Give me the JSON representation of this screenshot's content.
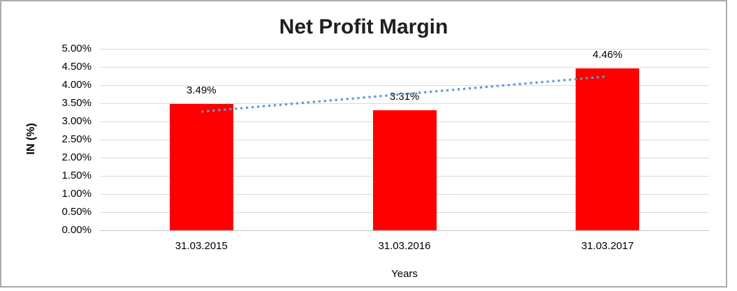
{
  "chart_data": {
    "type": "bar",
    "title": "Net Profit Margin",
    "xlabel": "Years",
    "ylabel": "IN (%)",
    "categories": [
      "31.03.2015",
      "31.03.2016",
      "31.03.2017"
    ],
    "values": [
      3.49,
      3.31,
      4.46
    ],
    "data_labels": [
      "3.49%",
      "3.31%",
      "4.46%"
    ],
    "y_ticks": [
      "5.00%",
      "4.50%",
      "4.00%",
      "3.50%",
      "3.00%",
      "2.50%",
      "2.00%",
      "1.50%",
      "1.00%",
      "0.50%",
      "0.00%"
    ],
    "ylim": [
      0,
      5
    ],
    "y_tick_step": 0.5,
    "grid": true,
    "legend": "none",
    "bar_color": "#ff0000",
    "trendline": {
      "type": "linear",
      "style": "dotted",
      "color": "#5b9bd5",
      "start_value_pct": 3.27,
      "end_value_pct": 4.24
    },
    "colors": {
      "gridline": "#d9d9d9",
      "axis_line": "#bfbfbf",
      "text": "#000000",
      "title_text": "#1f1f1f",
      "frame_border": "#ababab"
    }
  }
}
